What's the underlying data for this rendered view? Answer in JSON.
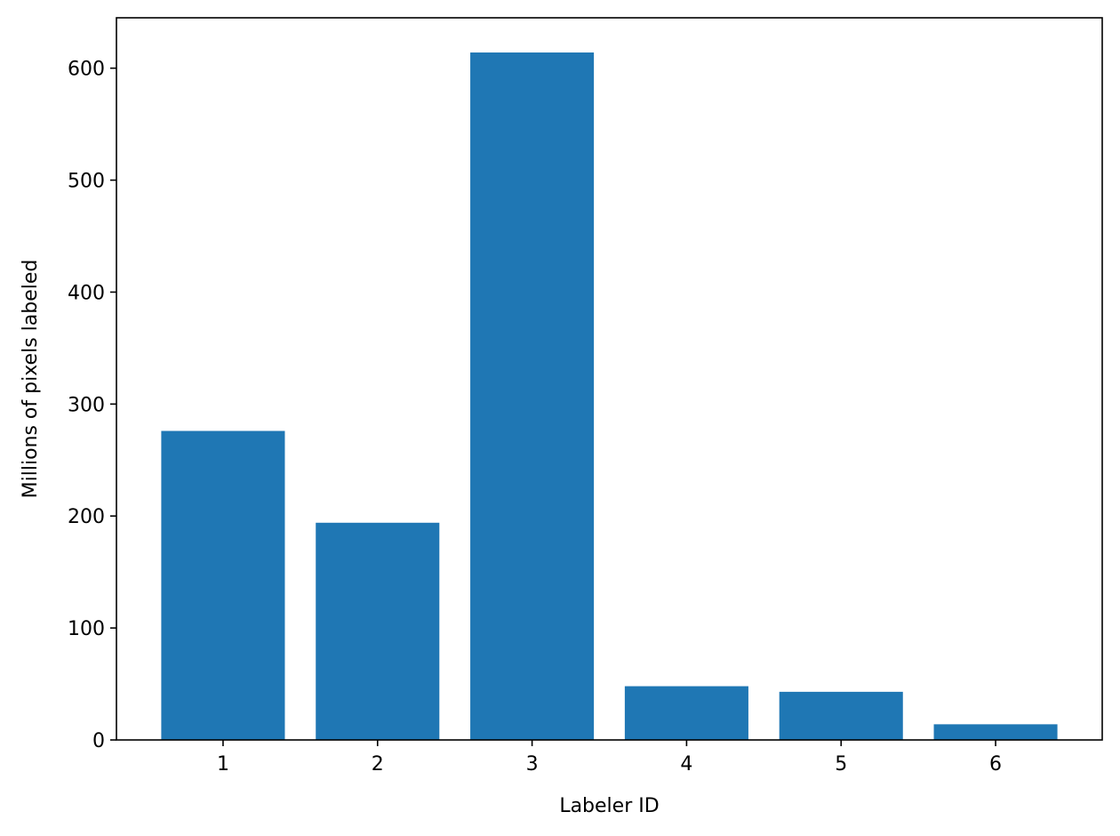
{
  "chart_data": {
    "type": "bar",
    "title": "",
    "xlabel": "Labeler ID",
    "ylabel": "Millions of pixels labeled",
    "categories": [
      "1",
      "2",
      "3",
      "4",
      "5",
      "6"
    ],
    "values": [
      276,
      194,
      614,
      48,
      43,
      14
    ],
    "ylim": [
      0,
      645
    ],
    "yticks": [
      0,
      100,
      200,
      300,
      400,
      500,
      600
    ],
    "grid": false,
    "bar_color": "#1f77b4"
  }
}
